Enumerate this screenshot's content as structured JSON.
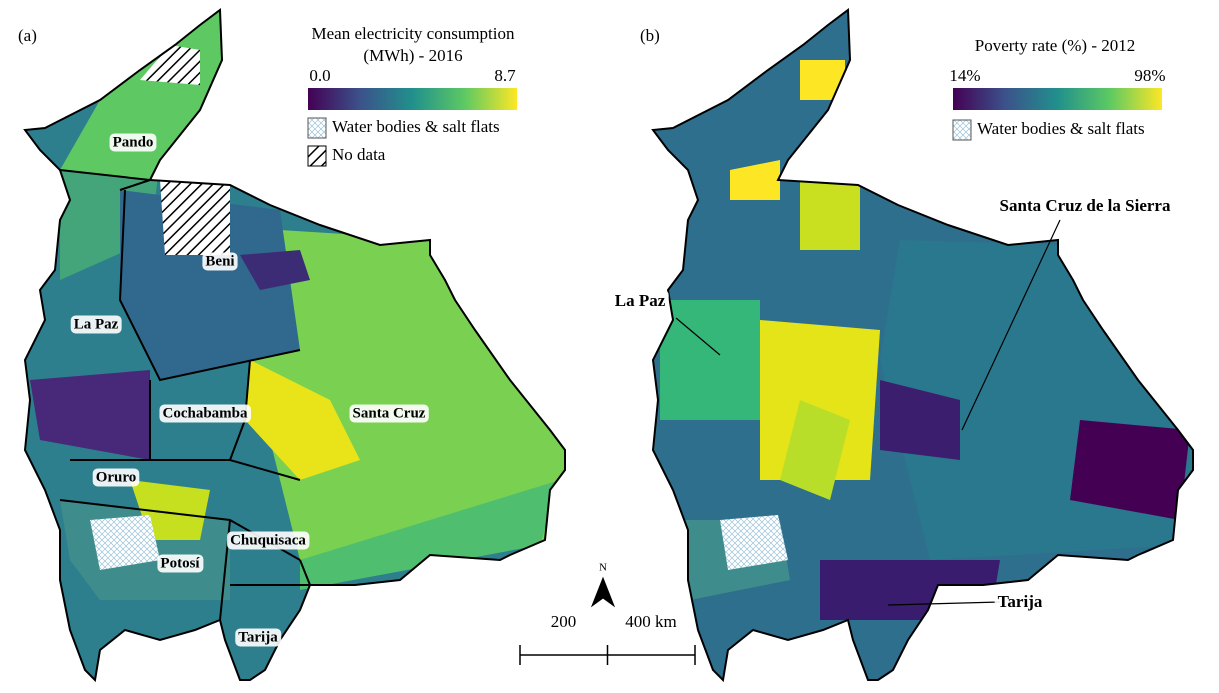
{
  "panels": [
    {
      "label": "(a)",
      "legend": {
        "title_lines": [
          "Mean electricity consumption",
          "(MWh) - 2016"
        ],
        "range": [
          {
            "value": 0,
            "label": "0.0"
          },
          {
            "value": 8.7,
            "label": "8.7"
          }
        ],
        "items": [
          "Water bodies & salt flats",
          "No data"
        ]
      },
      "regions": [
        "Pando",
        "Beni",
        "La Paz",
        "Cochabamba",
        "Santa Cruz",
        "Oruro",
        "Potosí",
        "Chuquisaca",
        "Tarija"
      ]
    },
    {
      "label": "(b)",
      "legend": {
        "title_lines": [
          "Poverty rate (%) - 2012"
        ],
        "range": [
          {
            "value": 14,
            "label": "14%"
          },
          {
            "value": 98,
            "label": "98%"
          }
        ],
        "items": [
          "Water bodies & salt flats"
        ]
      },
      "cities": [
        "Santa Cruz de la Sierra",
        "La Paz",
        "Tarija"
      ]
    }
  ],
  "north": "N",
  "scale_bar": {
    "ticks": [
      200,
      {
        "value": 400,
        "label": "400 km"
      }
    ]
  }
}
